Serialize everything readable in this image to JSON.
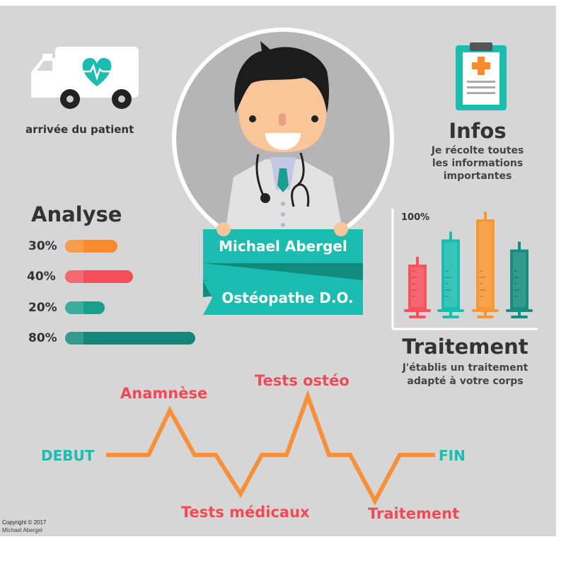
{
  "patient_arrival": {
    "label": "arrivée du patient",
    "icon": "ambulance-icon"
  },
  "doctor": {
    "name": "Michael Abergel",
    "title": "Ostéopathe D.O."
  },
  "infos": {
    "title": "Infos",
    "lines": [
      "Je récolte toutes",
      "les informations",
      "importantes"
    ],
    "icon": "clipboard-icon"
  },
  "analyse": {
    "title": "Analyse",
    "bars": [
      {
        "label": "30%",
        "value": 30,
        "color": "#f98b2e"
      },
      {
        "label": "40%",
        "value": 40,
        "color": "#f34e5a"
      },
      {
        "label": "20%",
        "value": 20,
        "color": "#1a9e8e"
      },
      {
        "label": "80%",
        "value": 80,
        "color": "#15877a"
      }
    ]
  },
  "traitement": {
    "title": "Traitement",
    "lines": [
      "J'établis un traitement",
      "adapté à votre corps"
    ],
    "axis_label": "100%",
    "syringes": [
      {
        "value": 55,
        "color": "#f8525d"
      },
      {
        "value": 80,
        "color": "#1dbcb0"
      },
      {
        "value": 100,
        "color": "#f99736"
      },
      {
        "value": 70,
        "color": "#168d80"
      }
    ]
  },
  "timeline": {
    "start": "DEBUT",
    "end": "FIN",
    "steps": [
      "Anamnèse",
      "Tests médicaux",
      "Tests ostéo",
      "Traitement"
    ],
    "line_color": "#f8903a",
    "label_color": "#ef4a55",
    "end_color": "#1dbcb0"
  },
  "footer": {
    "copyright": "Copyright © 2017",
    "author": "Michael Abergel"
  }
}
